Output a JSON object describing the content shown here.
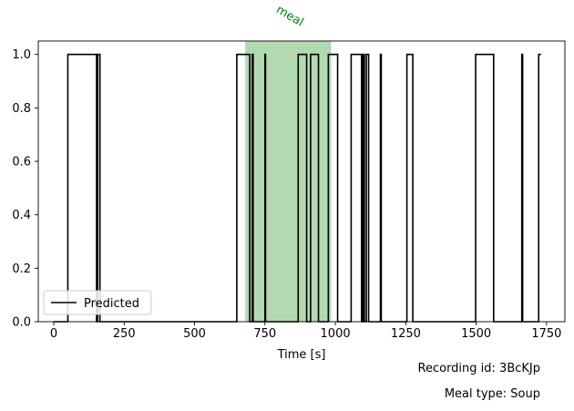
{
  "chart_data": {
    "type": "line",
    "step": true,
    "xlabel": "Time [s]",
    "ylabel": "",
    "xlim": [
      -55,
      1815
    ],
    "ylim": [
      0,
      1.05
    ],
    "xticks": [
      0,
      250,
      500,
      750,
      1000,
      1250,
      1500,
      1750
    ],
    "yticks": [
      0.0,
      0.2,
      0.4,
      0.6,
      0.8,
      1.0
    ],
    "xtick_labels": [
      "0",
      "250",
      "500",
      "750",
      "1000",
      "1250",
      "1500",
      "1750"
    ],
    "ytick_labels": [
      "0.0",
      "0.2",
      "0.4",
      "0.6",
      "0.8",
      "1.0"
    ],
    "grid": false,
    "legend_position": "lower-left",
    "series": [
      {
        "name": "Predicted",
        "color": "#000000",
        "on_intervals": [
          [
            50,
            152
          ],
          [
            156,
            164
          ],
          [
            650,
            696
          ],
          [
            705,
            708
          ],
          [
            750,
            752
          ],
          [
            868,
            898
          ],
          [
            912,
            940
          ],
          [
            975,
            1008
          ],
          [
            1056,
            1093
          ],
          [
            1098,
            1103
          ],
          [
            1110,
            1118
          ],
          [
            1160,
            1163
          ],
          [
            1254,
            1275
          ],
          [
            1498,
            1562
          ],
          [
            1662,
            1665
          ],
          [
            1722,
            1730
          ]
        ],
        "x_range": [
          0,
          1730
        ]
      }
    ],
    "shaded_regions": [
      {
        "label": "meal",
        "x_start": 680,
        "x_end": 985,
        "color": "#b3d9b3",
        "label_color": "#008000"
      }
    ]
  },
  "recording_id_text": "Recording id: 3BcKJp",
  "meal_type_text": "Meal type: Soup"
}
